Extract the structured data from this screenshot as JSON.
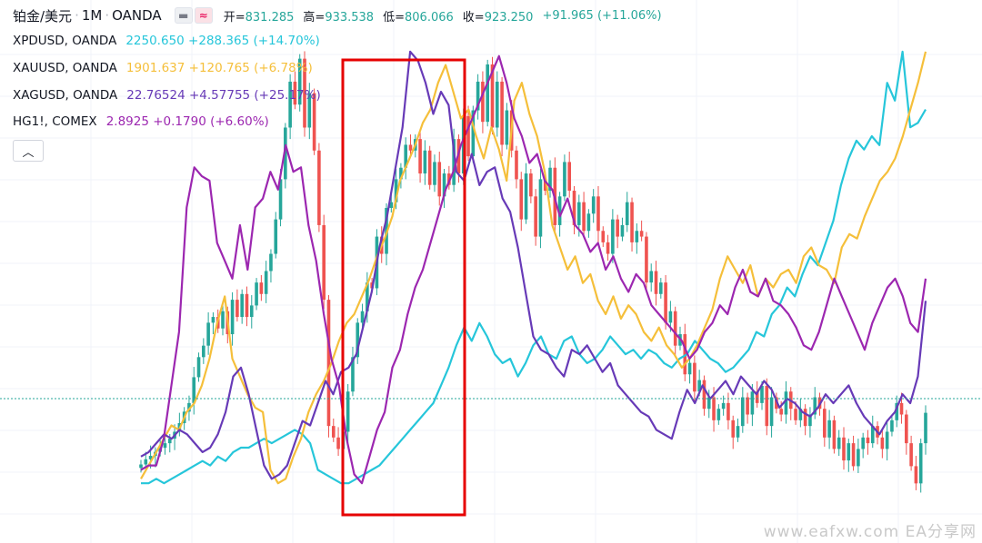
{
  "header": {
    "symbol": "铂金/美元",
    "interval": "1M",
    "exchange": "OANDA",
    "ohlc": [
      {
        "label": "开",
        "value": "831.285"
      },
      {
        "label": "高",
        "value": "933.538"
      },
      {
        "label": "低",
        "value": "806.066"
      },
      {
        "label": "收",
        "value": "923.250"
      }
    ],
    "change": "+91.965 (+11.06%)"
  },
  "legend": [
    {
      "name": "XPDUSD, OANDA",
      "value": "2250.650",
      "change": "+288.365 (+14.70%)",
      "color": "#26c6da"
    },
    {
      "name": "XAUUSD, OANDA",
      "value": "1901.637",
      "change": "+120.765 (+6.78%)",
      "color": "#f5bf3a"
    },
    {
      "name": "XAGUSD, OANDA",
      "value": "22.76524",
      "change": "+4.57755 (+25.17%)",
      "color": "#673ab7"
    },
    {
      "name": "HG1!, COMEX",
      "value": "2.8925",
      "change": "+0.1790 (+6.60%)",
      "color": "#9c27b0"
    }
  ],
  "watermark": "www.eafxw.com   EA分享网",
  "colors": {
    "up": "#26a69a",
    "down": "#ef5350",
    "last_price_line": "#26a69a",
    "highlight_box": "#e60000"
  },
  "chart_data": {
    "type": "line",
    "main_series": {
      "name": "铂金/美元",
      "type": "candlestick",
      "closes": [
        833,
        842,
        848,
        855,
        862,
        870,
        878,
        890,
        905,
        925,
        940,
        985,
        1020,
        1040,
        1080,
        1090,
        1070,
        1100,
        1060,
        1120,
        1090,
        1130,
        1090,
        1110,
        1150,
        1130,
        1170,
        1200,
        1260,
        1330,
        1420,
        1500,
        1460,
        1540,
        1420,
        1480,
        1380,
        1250,
        1120,
        900,
        880,
        860,
        890,
        960,
        1020,
        1080,
        1100,
        1150,
        1140,
        1230,
        1200,
        1280,
        1290,
        1330,
        1350,
        1390,
        1380,
        1400,
        1340,
        1380,
        1320,
        1360,
        1300,
        1340,
        1320,
        1400,
        1340,
        1440,
        1370,
        1450,
        1500,
        1430,
        1530,
        1420,
        1500,
        1390,
        1450,
        1380,
        1330,
        1260,
        1340,
        1300,
        1230,
        1330,
        1310,
        1350,
        1250,
        1300,
        1360,
        1310,
        1250,
        1290,
        1240,
        1270,
        1300,
        1240,
        1220,
        1200,
        1260,
        1230,
        1250,
        1290,
        1220,
        1240,
        1230,
        1150,
        1170,
        1130,
        1150,
        1080,
        1100,
        1040,
        1060,
        990,
        1010,
        960,
        980,
        930,
        950,
        910,
        930,
        940,
        910,
        880,
        900,
        950,
        920,
        960,
        940,
        970,
        900,
        950,
        930,
        920,
        960,
        930,
        910,
        930,
        900,
        920,
        950,
        930,
        880,
        910,
        860,
        880,
        840,
        870,
        830,
        860,
        880,
        870,
        900,
        880,
        860,
        890,
        910,
        940,
        920,
        870,
        830,
        800,
        870,
        923
      ]
    },
    "overlay_series": [
      {
        "name": "XPDUSD, OANDA",
        "color": "#26c6da",
        "values": [
          0.02,
          0.02,
          0.03,
          0.02,
          0.03,
          0.04,
          0.05,
          0.06,
          0.07,
          0.06,
          0.08,
          0.07,
          0.09,
          0.1,
          0.1,
          0.11,
          0.12,
          0.11,
          0.12,
          0.13,
          0.14,
          0.13,
          0.11,
          0.05,
          0.04,
          0.03,
          0.02,
          0.02,
          0.03,
          0.04,
          0.05,
          0.06,
          0.08,
          0.1,
          0.12,
          0.14,
          0.16,
          0.18,
          0.2,
          0.24,
          0.28,
          0.33,
          0.37,
          0.34,
          0.38,
          0.35,
          0.31,
          0.29,
          0.3,
          0.26,
          0.29,
          0.33,
          0.35,
          0.31,
          0.3,
          0.34,
          0.35,
          0.31,
          0.29,
          0.3,
          0.32,
          0.35,
          0.33,
          0.31,
          0.32,
          0.3,
          0.32,
          0.31,
          0.29,
          0.28,
          0.3,
          0.31,
          0.34,
          0.32,
          0.3,
          0.29,
          0.27,
          0.28,
          0.3,
          0.32,
          0.36,
          0.35,
          0.4,
          0.42,
          0.46,
          0.44,
          0.49,
          0.53,
          0.51,
          0.56,
          0.61,
          0.69,
          0.75,
          0.79,
          0.77,
          0.8,
          0.78,
          0.92,
          0.88,
          0.99,
          0.82,
          0.83,
          0.86
        ]
      },
      {
        "name": "XAUUSD, OANDA",
        "color": "#f5bf3a",
        "values": [
          0.03,
          0.06,
          0.09,
          0.12,
          0.15,
          0.14,
          0.18,
          0.2,
          0.24,
          0.3,
          0.38,
          0.44,
          0.3,
          0.26,
          0.22,
          0.19,
          0.18,
          0.05,
          0.02,
          0.03,
          0.08,
          0.12,
          0.18,
          0.22,
          0.25,
          0.29,
          0.34,
          0.38,
          0.4,
          0.44,
          0.48,
          0.53,
          0.57,
          0.62,
          0.7,
          0.74,
          0.78,
          0.83,
          0.86,
          0.92,
          0.96,
          0.9,
          0.84,
          0.86,
          0.8,
          0.75,
          0.82,
          0.77,
          0.7,
          0.88,
          0.92,
          0.85,
          0.8,
          0.72,
          0.6,
          0.55,
          0.5,
          0.53,
          0.47,
          0.49,
          0.43,
          0.4,
          0.44,
          0.39,
          0.42,
          0.4,
          0.36,
          0.34,
          0.37,
          0.33,
          0.31,
          0.28,
          0.3,
          0.33,
          0.37,
          0.41,
          0.48,
          0.53,
          0.5,
          0.47,
          0.51,
          0.44,
          0.48,
          0.46,
          0.49,
          0.5,
          0.47,
          0.53,
          0.55,
          0.51,
          0.5,
          0.47,
          0.55,
          0.58,
          0.57,
          0.62,
          0.66,
          0.7,
          0.72,
          0.75,
          0.8,
          0.86,
          0.92,
          0.99
        ]
      },
      {
        "name": "XAGUSD, OANDA",
        "color": "#673ab7",
        "values": [
          0.08,
          0.09,
          0.11,
          0.13,
          0.12,
          0.14,
          0.13,
          0.11,
          0.09,
          0.1,
          0.13,
          0.18,
          0.26,
          0.28,
          0.22,
          0.14,
          0.06,
          0.03,
          0.04,
          0.06,
          0.11,
          0.16,
          0.15,
          0.2,
          0.25,
          0.22,
          0.27,
          0.28,
          0.31,
          0.38,
          0.45,
          0.55,
          0.62,
          0.72,
          0.82,
          0.99,
          0.97,
          0.92,
          0.85,
          0.9,
          0.87,
          0.72,
          0.7,
          0.76,
          0.69,
          0.72,
          0.73,
          0.66,
          0.63,
          0.55,
          0.45,
          0.35,
          0.32,
          0.31,
          0.28,
          0.26,
          0.32,
          0.31,
          0.33,
          0.3,
          0.27,
          0.29,
          0.24,
          0.22,
          0.2,
          0.18,
          0.17,
          0.14,
          0.13,
          0.12,
          0.18,
          0.23,
          0.2,
          0.24,
          0.21,
          0.23,
          0.25,
          0.22,
          0.26,
          0.24,
          0.22,
          0.25,
          0.23,
          0.19,
          0.21,
          0.2,
          0.18,
          0.17,
          0.19,
          0.22,
          0.2,
          0.22,
          0.24,
          0.2,
          0.17,
          0.15,
          0.13,
          0.16,
          0.18,
          0.22,
          0.2,
          0.26,
          0.43
        ]
      },
      {
        "name": "HG1!, COMEX",
        "color": "#9c27b0",
        "values": [
          0.05,
          0.06,
          0.06,
          0.12,
          0.24,
          0.36,
          0.64,
          0.73,
          0.71,
          0.7,
          0.56,
          0.52,
          0.48,
          0.6,
          0.5,
          0.64,
          0.66,
          0.72,
          0.68,
          0.78,
          0.72,
          0.73,
          0.6,
          0.52,
          0.4,
          0.3,
          0.24,
          0.12,
          0.04,
          0.02,
          0.08,
          0.14,
          0.18,
          0.28,
          0.32,
          0.4,
          0.46,
          0.5,
          0.56,
          0.62,
          0.68,
          0.72,
          0.78,
          0.82,
          0.86,
          0.9,
          0.94,
          0.98,
          0.92,
          0.84,
          0.8,
          0.74,
          0.76,
          0.7,
          0.68,
          0.62,
          0.66,
          0.6,
          0.58,
          0.54,
          0.56,
          0.5,
          0.53,
          0.48,
          0.45,
          0.49,
          0.47,
          0.42,
          0.4,
          0.38,
          0.36,
          0.34,
          0.3,
          0.32,
          0.36,
          0.38,
          0.42,
          0.4,
          0.46,
          0.5,
          0.45,
          0.44,
          0.48,
          0.43,
          0.42,
          0.4,
          0.37,
          0.33,
          0.32,
          0.36,
          0.42,
          0.48,
          0.44,
          0.4,
          0.36,
          0.32,
          0.38,
          0.42,
          0.46,
          0.48,
          0.44,
          0.38,
          0.36,
          0.48
        ]
      }
    ]
  }
}
